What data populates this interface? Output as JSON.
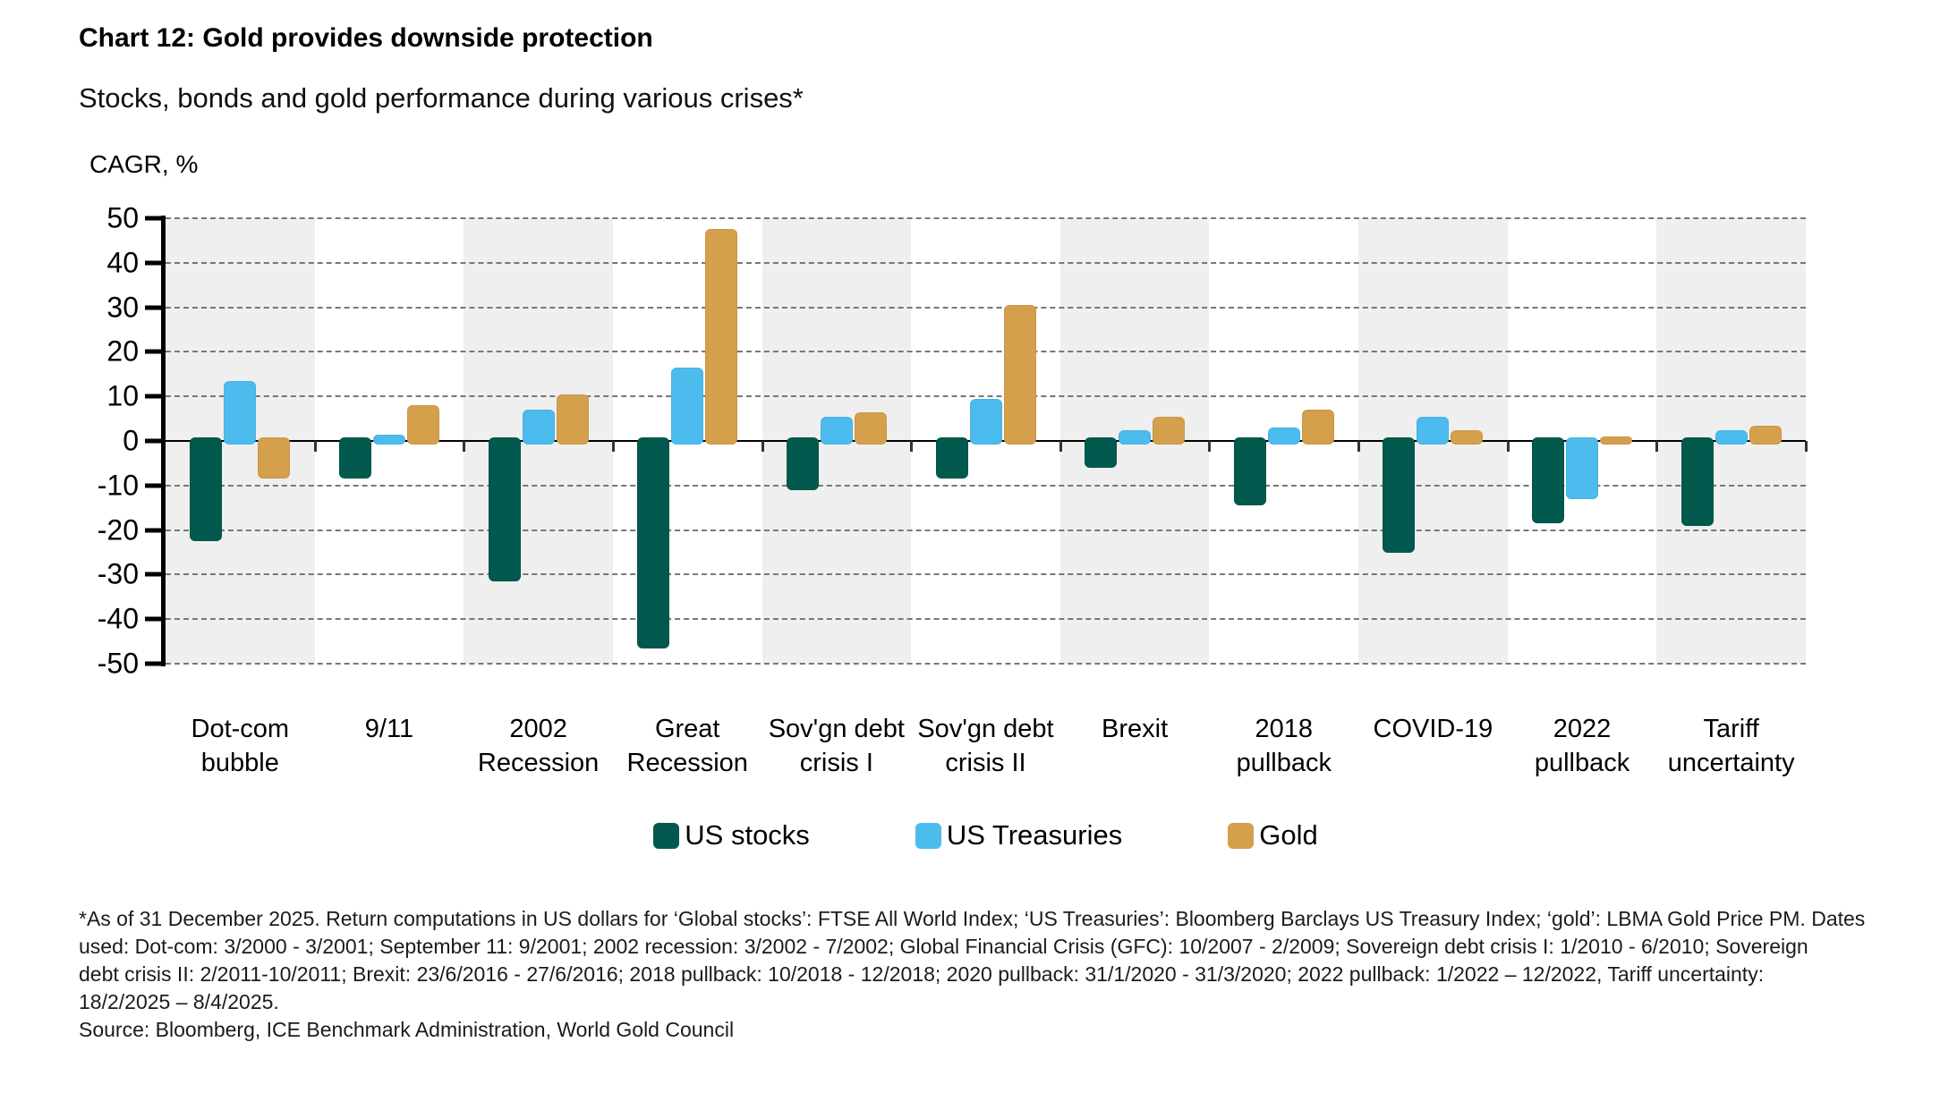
{
  "header": {
    "title": "Chart 12: Gold provides downside protection",
    "subtitle": "Stocks, bonds and gold performance during various crises*"
  },
  "y_axis_title": "CAGR, %",
  "footnote": {
    "lines": [
      "*As of 31 December 2025. Return computations in US dollars for ‘Global stocks’: FTSE All World Index; ‘US Treasuries’: Bloomberg Barclays US Treasury Index; ‘gold’: LBMA Gold Price PM. Dates",
      "used: Dot-com: 3/2000 - 3/2001; September 11: 9/2001; 2002 recession: 3/2002 - 7/2002; Global Financial Crisis (GFC): 10/2007 - 2/2009; Sovereign debt crisis I: 1/2010 - 6/2010; Sovereign",
      "debt crisis II: 2/2011-10/2011; Brexit: 23/6/2016 - 27/6/2016; 2018 pullback: 10/2018 - 12/2018; 2020 pullback: 31/1/2020 - 31/3/2020; 2022 pullback: 1/2022 – 12/2022, Tariff uncertainty:",
      "18/2/2025 – 8/4/2025."
    ],
    "source": "Source: Bloomberg, ICE Benchmark Administration, World Gold Council"
  },
  "colors": {
    "us_stocks": "#01594E",
    "us_treasuries": "#4CBBEE",
    "gold": "#D4A04C",
    "band_gray": "#EFEFEF",
    "gridline": "#777777",
    "axis": "#000000"
  },
  "chart_data": {
    "type": "bar",
    "title": "Chart 12: Gold provides downside protection",
    "subtitle": "Stocks, bonds and gold performance during various crises*",
    "xlabel": "",
    "ylabel": "CAGR, %",
    "ylim": [
      -50,
      50
    ],
    "ytick_step": 10,
    "grid": "horizontal-dashed",
    "plot_background": "alternating vertical bands (gray/white) per category",
    "legend_position": "bottom-center",
    "categories": [
      "Dot-com bubble",
      "9/11",
      "2002 Recession",
      "Great Recession",
      "Sov'gn debt crisis I",
      "Sov'gn debt crisis II",
      "Brexit",
      "2018 pullback",
      "COVID-19",
      "2022 pullback",
      "Tariff uncertainty"
    ],
    "category_label_lines": [
      [
        "Dot-com",
        "bubble"
      ],
      [
        "9/11"
      ],
      [
        "2002",
        "Recession"
      ],
      [
        "Great",
        "Recession"
      ],
      [
        "Sov'gn debt",
        "crisis I"
      ],
      [
        "Sov'gn debt",
        "crisis II"
      ],
      [
        "Brexit"
      ],
      [
        "2018",
        "pullback"
      ],
      [
        "COVID-19"
      ],
      [
        "2022",
        "pullback"
      ],
      [
        "Tariff",
        "uncertainty"
      ]
    ],
    "series": [
      {
        "name": "US stocks",
        "color": "#01594E",
        "values": [
          -22.5,
          -8.5,
          -31.5,
          -46.5,
          -11,
          -8.5,
          -6,
          -14.5,
          -25,
          -18.5,
          -19
        ]
      },
      {
        "name": "US Treasuries",
        "color": "#4CBBEE",
        "values": [
          13.5,
          1.5,
          7,
          16.5,
          5.5,
          9.5,
          2.5,
          3,
          5.5,
          -13,
          2.5
        ]
      },
      {
        "name": "Gold",
        "color": "#D4A04C",
        "values": [
          -8.5,
          8,
          10.5,
          47.5,
          6.5,
          30.5,
          5.5,
          7,
          2.5,
          1,
          3.5
        ]
      }
    ]
  }
}
